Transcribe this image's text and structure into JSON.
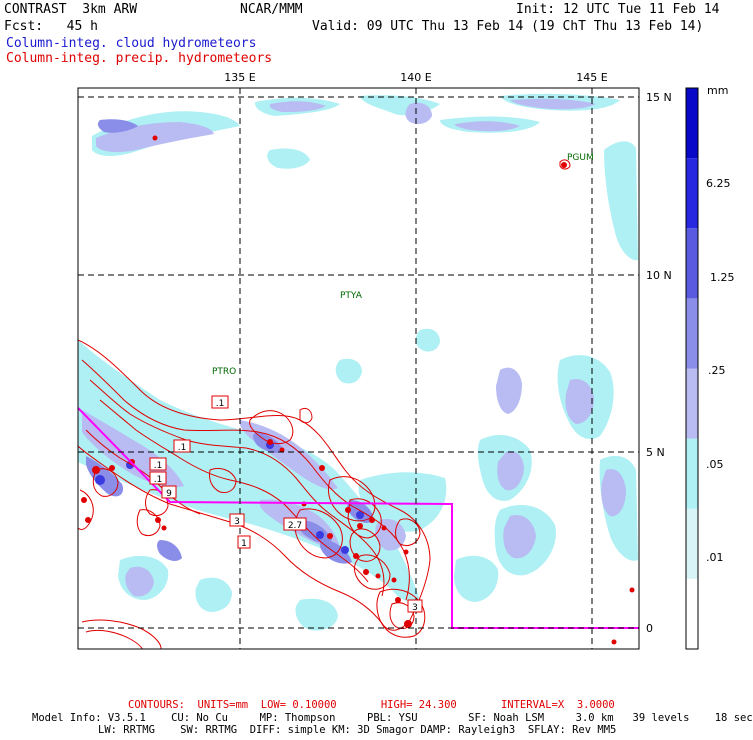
{
  "header": {
    "title": "CONTRAST  3km ARW",
    "center": "NCAR/MMM",
    "init": "Init: 12 UTC Tue 11 Feb 14",
    "fcst": "Fcst:   45 h",
    "valid": "Valid: 09 UTC Thu 13 Feb 14 (19 ChT Thu 13 Feb 14)",
    "field1": "Column-integ. cloud hydrometeors",
    "field2": "Column-integ. precip. hydrometeors"
  },
  "axes": {
    "lon_labels": [
      "135 E",
      "140 E",
      "145 E"
    ],
    "lat_labels": [
      "15 N",
      "10 N",
      "5 N",
      "0"
    ]
  },
  "stations": [
    "PGUM",
    "PTYA",
    "PTRO"
  ],
  "contour_labels": [
    ".1",
    ".1",
    ".1",
    ".1",
    "9",
    "3",
    "2.7",
    "1",
    "3"
  ],
  "legend": {
    "unit": "mm",
    "levels": [
      "6.25",
      "1.25",
      ".25",
      ".05",
      ".01"
    ],
    "colors": [
      "#ffffff",
      "#d8f4f6",
      "#aef0f4",
      "#b8bcf2",
      "#8a8ee8",
      "#5a5ae0",
      "#2828e0",
      "#0808c8"
    ]
  },
  "colors": {
    "cloud_light": "#aef0f4",
    "cloud_mid": "#b8bcf2",
    "cloud_dark": "#8a8ee8",
    "precip_contour": "#e00000",
    "domain_box": "#ff00ff"
  },
  "footer": {
    "contours": "CONTOURS:  UNITS=mm  LOW= 0.10000       HIGH= 24.300       INTERVAL=X  3.0000",
    "model_line1": "Model Info: V3.5.1    CU: No Cu     MP: Thompson     PBL: YSU        SF: Noah LSM     3.0 km   39 levels    18 sec",
    "model_line2": "LW: RRTMG    SW: RRTMG  DIFF: simple KM: 3D Smagor DAMP: Rayleigh3  SFLAY: Rev MM5"
  }
}
